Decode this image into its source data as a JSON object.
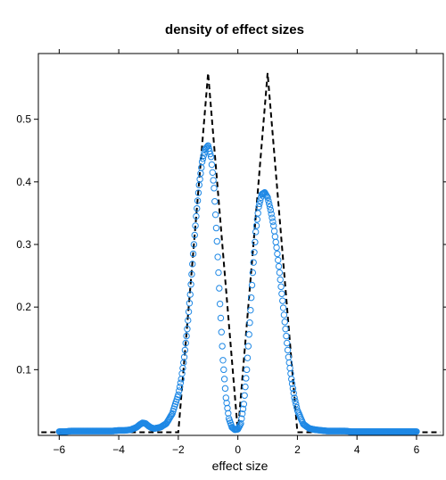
{
  "chart_data": {
    "type": "line",
    "title": "density of effect sizes",
    "xlabel": "effect size",
    "ylabel": "",
    "xlim": [
      -6.7,
      6.9
    ],
    "ylim": [
      -0.005,
      0.605
    ],
    "x_ticks": [
      -6,
      -4,
      -2,
      0,
      2,
      4,
      6
    ],
    "x_tick_labels": [
      "−6",
      "−4",
      "−2",
      "0",
      "2",
      "4",
      "6"
    ],
    "y_ticks": [
      0.1,
      0.2,
      0.3,
      0.4,
      0.5
    ],
    "y_tick_labels": [
      "0.1",
      "0.2",
      "0.3",
      "0.4",
      "0.5"
    ],
    "grid": false,
    "legend": "none",
    "colors": {
      "estimated": "#1e88e5",
      "true": "#000000"
    },
    "series": [
      {
        "style": "open-circles",
        "x": [
          -6.0,
          -5.8,
          -5.6,
          -5.4,
          -5.2,
          -5.0,
          -4.8,
          -4.6,
          -4.4,
          -4.2,
          -4.0,
          -3.8,
          -3.6,
          -3.4,
          -3.3,
          -3.2,
          -3.1,
          -3.0,
          -2.9,
          -2.8,
          -2.6,
          -2.4,
          -2.2,
          -2.0,
          -1.9,
          -1.8,
          -1.7,
          -1.6,
          -1.5,
          -1.4,
          -1.3,
          -1.2,
          -1.1,
          -1.0,
          -0.9,
          -0.8,
          -0.7,
          -0.6,
          -0.5,
          -0.4,
          -0.3,
          -0.2,
          -0.1,
          0.0,
          0.1,
          0.2,
          0.3,
          0.4,
          0.5,
          0.6,
          0.7,
          0.8,
          0.9,
          1.0,
          1.1,
          1.2,
          1.3,
          1.4,
          1.5,
          1.6,
          1.7,
          1.8,
          1.9,
          2.0,
          2.2,
          2.4,
          2.6,
          2.8,
          3.0,
          3.2,
          3.4,
          3.6,
          3.8,
          4.0,
          4.2,
          4.4,
          4.6,
          4.8,
          5.0,
          5.2,
          5.4,
          5.6,
          5.8,
          6.0
        ],
        "y": [
          0.001,
          0.001,
          0.002,
          0.002,
          0.002,
          0.002,
          0.002,
          0.002,
          0.002,
          0.002,
          0.003,
          0.003,
          0.004,
          0.008,
          0.012,
          0.015,
          0.014,
          0.01,
          0.007,
          0.006,
          0.008,
          0.014,
          0.03,
          0.06,
          0.085,
          0.12,
          0.165,
          0.22,
          0.285,
          0.345,
          0.395,
          0.432,
          0.452,
          0.458,
          0.44,
          0.39,
          0.305,
          0.205,
          0.115,
          0.055,
          0.022,
          0.008,
          0.004,
          0.005,
          0.014,
          0.045,
          0.1,
          0.175,
          0.255,
          0.32,
          0.36,
          0.38,
          0.383,
          0.375,
          0.355,
          0.33,
          0.295,
          0.255,
          0.21,
          0.165,
          0.12,
          0.085,
          0.055,
          0.035,
          0.013,
          0.006,
          0.004,
          0.003,
          0.002,
          0.002,
          0.002,
          0.002,
          0.001,
          0.001,
          0.001,
          0.001,
          0.001,
          0.001,
          0.001,
          0.001,
          0.001,
          0.001,
          0.001,
          0.001
        ]
      },
      {
        "style": "dashed",
        "x": [
          -6.6,
          -2.0,
          -1.0,
          0.0,
          1.0,
          2.0,
          6.8
        ],
        "y": [
          0.0,
          0.0,
          0.574,
          0.0,
          0.574,
          0.0,
          0.0
        ]
      }
    ]
  }
}
